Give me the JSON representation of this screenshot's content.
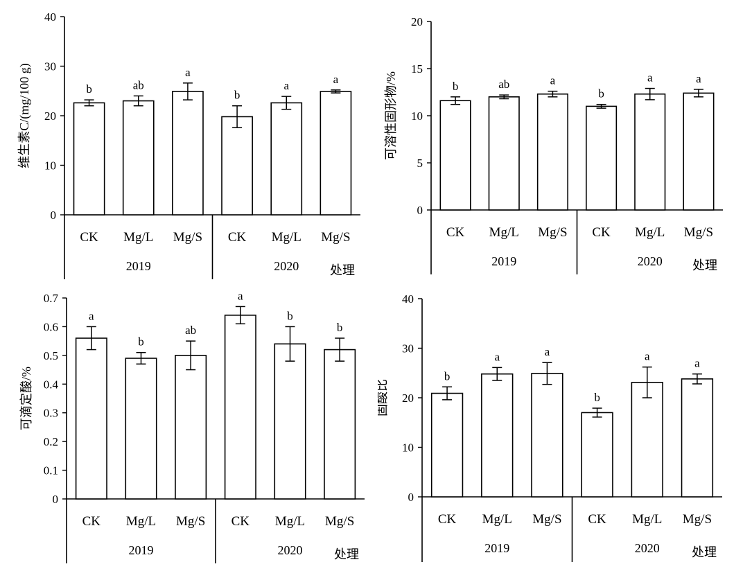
{
  "chart_data": [
    {
      "type": "bar",
      "ylabel": "维生素C/(mg/100 g)",
      "xlabel": "处理",
      "ylim": [
        0,
        40
      ],
      "yticks": [
        0,
        10,
        20,
        30,
        40
      ],
      "groups": [
        {
          "label": "2019",
          "categories": [
            "CK",
            "Mg/L",
            "Mg/S"
          ]
        },
        {
          "label": "2020",
          "categories": [
            "CK",
            "Mg/L",
            "Mg/S"
          ]
        }
      ],
      "categories": [
        "CK",
        "Mg/L",
        "Mg/S",
        "CK",
        "Mg/L",
        "Mg/S"
      ],
      "values": [
        22.6,
        23.0,
        24.9,
        19.8,
        22.6,
        24.9
      ],
      "errors": [
        0.6,
        1.0,
        1.7,
        2.2,
        1.3,
        0.3
      ],
      "significance": [
        "b",
        "ab",
        "a",
        "b",
        "a",
        "a"
      ]
    },
    {
      "type": "bar",
      "ylabel": "可溶性固形物/%",
      "xlabel": "处理",
      "ylim": [
        0,
        20
      ],
      "yticks": [
        0,
        5,
        10,
        15,
        20
      ],
      "groups": [
        {
          "label": "2019",
          "categories": [
            "CK",
            "Mg/L",
            "Mg/S"
          ]
        },
        {
          "label": "2020",
          "categories": [
            "CK",
            "Mg/L",
            "Mg/S"
          ]
        }
      ],
      "categories": [
        "CK",
        "Mg/L",
        "Mg/S",
        "CK",
        "Mg/L",
        "Mg/S"
      ],
      "values": [
        11.6,
        12.0,
        12.3,
        11.0,
        12.3,
        12.4
      ],
      "errors": [
        0.4,
        0.2,
        0.3,
        0.2,
        0.6,
        0.4
      ],
      "significance": [
        "b",
        "ab",
        "a",
        "b",
        "a",
        "a"
      ]
    },
    {
      "type": "bar",
      "ylabel": "可滴定酸/%",
      "xlabel": "处理",
      "ylim": [
        0,
        0.7
      ],
      "yticks": [
        0,
        0.1,
        0.2,
        0.3,
        0.4,
        0.5,
        0.6,
        0.7
      ],
      "ytick_labels": [
        "0",
        "0.1",
        "0.2",
        "0.3",
        "0.4",
        "0.5",
        "0.6",
        "0.7"
      ],
      "groups": [
        {
          "label": "2019",
          "categories": [
            "CK",
            "Mg/L",
            "Mg/S"
          ]
        },
        {
          "label": "2020",
          "categories": [
            "CK",
            "Mg/L",
            "Mg/S"
          ]
        }
      ],
      "categories": [
        "CK",
        "Mg/L",
        "Mg/S",
        "CK",
        "Mg/L",
        "Mg/S"
      ],
      "values": [
        0.56,
        0.49,
        0.5,
        0.64,
        0.54,
        0.52
      ],
      "errors": [
        0.04,
        0.02,
        0.05,
        0.03,
        0.06,
        0.04
      ],
      "significance": [
        "a",
        "b",
        "ab",
        "a",
        "b",
        "b"
      ]
    },
    {
      "type": "bar",
      "ylabel": "固酸比",
      "xlabel": "处理",
      "ylim": [
        0,
        40
      ],
      "yticks": [
        0,
        10,
        20,
        30,
        40
      ],
      "groups": [
        {
          "label": "2019",
          "categories": [
            "CK",
            "Mg/L",
            "Mg/S"
          ]
        },
        {
          "label": "2020",
          "categories": [
            "CK",
            "Mg/L",
            "Mg/S"
          ]
        }
      ],
      "categories": [
        "CK",
        "Mg/L",
        "Mg/S",
        "CK",
        "Mg/L",
        "Mg/S"
      ],
      "values": [
        20.9,
        24.8,
        24.9,
        17.0,
        23.1,
        23.8
      ],
      "errors": [
        1.3,
        1.3,
        2.2,
        0.9,
        3.1,
        1.0
      ],
      "significance": [
        "b",
        "a",
        "a",
        "b",
        "a",
        "a"
      ]
    }
  ]
}
